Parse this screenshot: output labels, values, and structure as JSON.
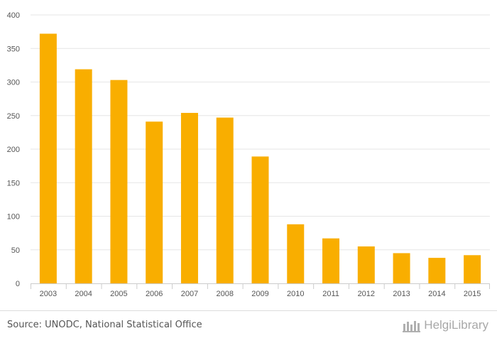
{
  "chart_data": {
    "type": "bar",
    "categories": [
      "2003",
      "2004",
      "2005",
      "2006",
      "2007",
      "2008",
      "2009",
      "2010",
      "2011",
      "2012",
      "2013",
      "2014",
      "2015"
    ],
    "values": [
      372,
      319,
      303,
      241,
      254,
      247,
      189,
      88,
      67,
      55,
      45,
      38,
      42
    ],
    "ylim": [
      0,
      400
    ],
    "yticks": [
      0,
      50,
      100,
      150,
      200,
      250,
      300,
      350,
      400
    ],
    "grid": true,
    "bar_color": "#F9AE00",
    "grid_color": "#e6e6e6",
    "legend": "none"
  },
  "footer": {
    "source": "Source: UNODC, National Statistical Office",
    "brand": "HelgiLibrary",
    "brand_icon": "library-logo-icon"
  }
}
